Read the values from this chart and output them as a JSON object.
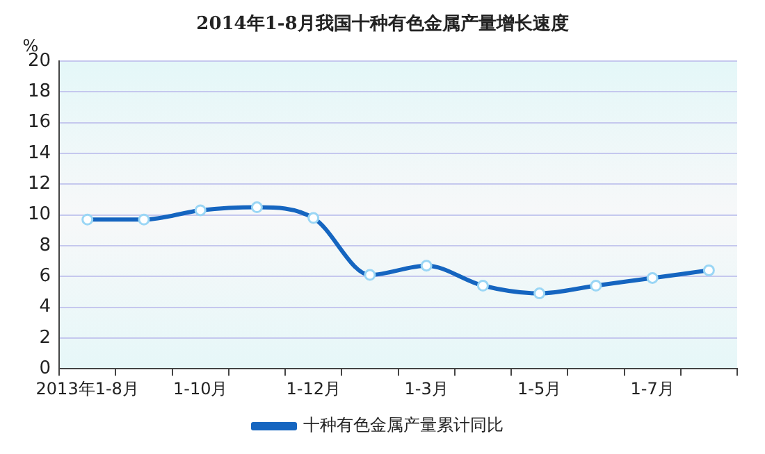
{
  "chart_data": {
    "type": "line",
    "title": "2014年1-8月我国十种有色金属产量增长速度",
    "ylabel": "%",
    "categories": [
      "2013年1-8月",
      null,
      "1-10月",
      null,
      "1-12月",
      null,
      "1-3月",
      null,
      "1-5月",
      null,
      "1-7月",
      null
    ],
    "series": [
      {
        "name": "十种有色金属产量累计同比",
        "color": "#1565c0",
        "values": [
          9.7,
          9.7,
          10.3,
          10.5,
          9.8,
          6.1,
          6.7,
          5.4,
          4.9,
          5.4,
          5.9,
          6.4
        ]
      }
    ],
    "ylim": [
      0,
      20
    ],
    "yticks": [
      0,
      2,
      4,
      6,
      8,
      10,
      12,
      14,
      16,
      18,
      20
    ],
    "grid": "y",
    "legend": "bottom",
    "marker": "circle",
    "line_style": "solid"
  }
}
